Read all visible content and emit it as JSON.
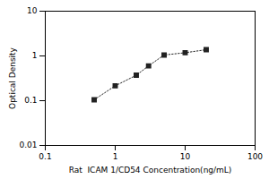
{
  "chart_data": {
    "type": "line",
    "x": [
      0.5,
      1.0,
      2.0,
      3.0,
      5.0,
      10.0,
      20.0
    ],
    "values": [
      0.105,
      0.215,
      0.37,
      0.6,
      1.05,
      1.18,
      1.38
    ],
    "xlim": [
      0.1,
      100
    ],
    "ylim": [
      0.01,
      10
    ],
    "xticks": [
      0.1,
      1,
      10,
      100
    ],
    "yticks": [
      0.01,
      0.1,
      1,
      10
    ],
    "xlabel": "Rat  ICAM 1/CD54 Concentration(ng/mL)",
    "ylabel": "Optical Density",
    "log": true,
    "grid": false,
    "color": "#222222",
    "marker": "square",
    "line_style": "dotted"
  }
}
